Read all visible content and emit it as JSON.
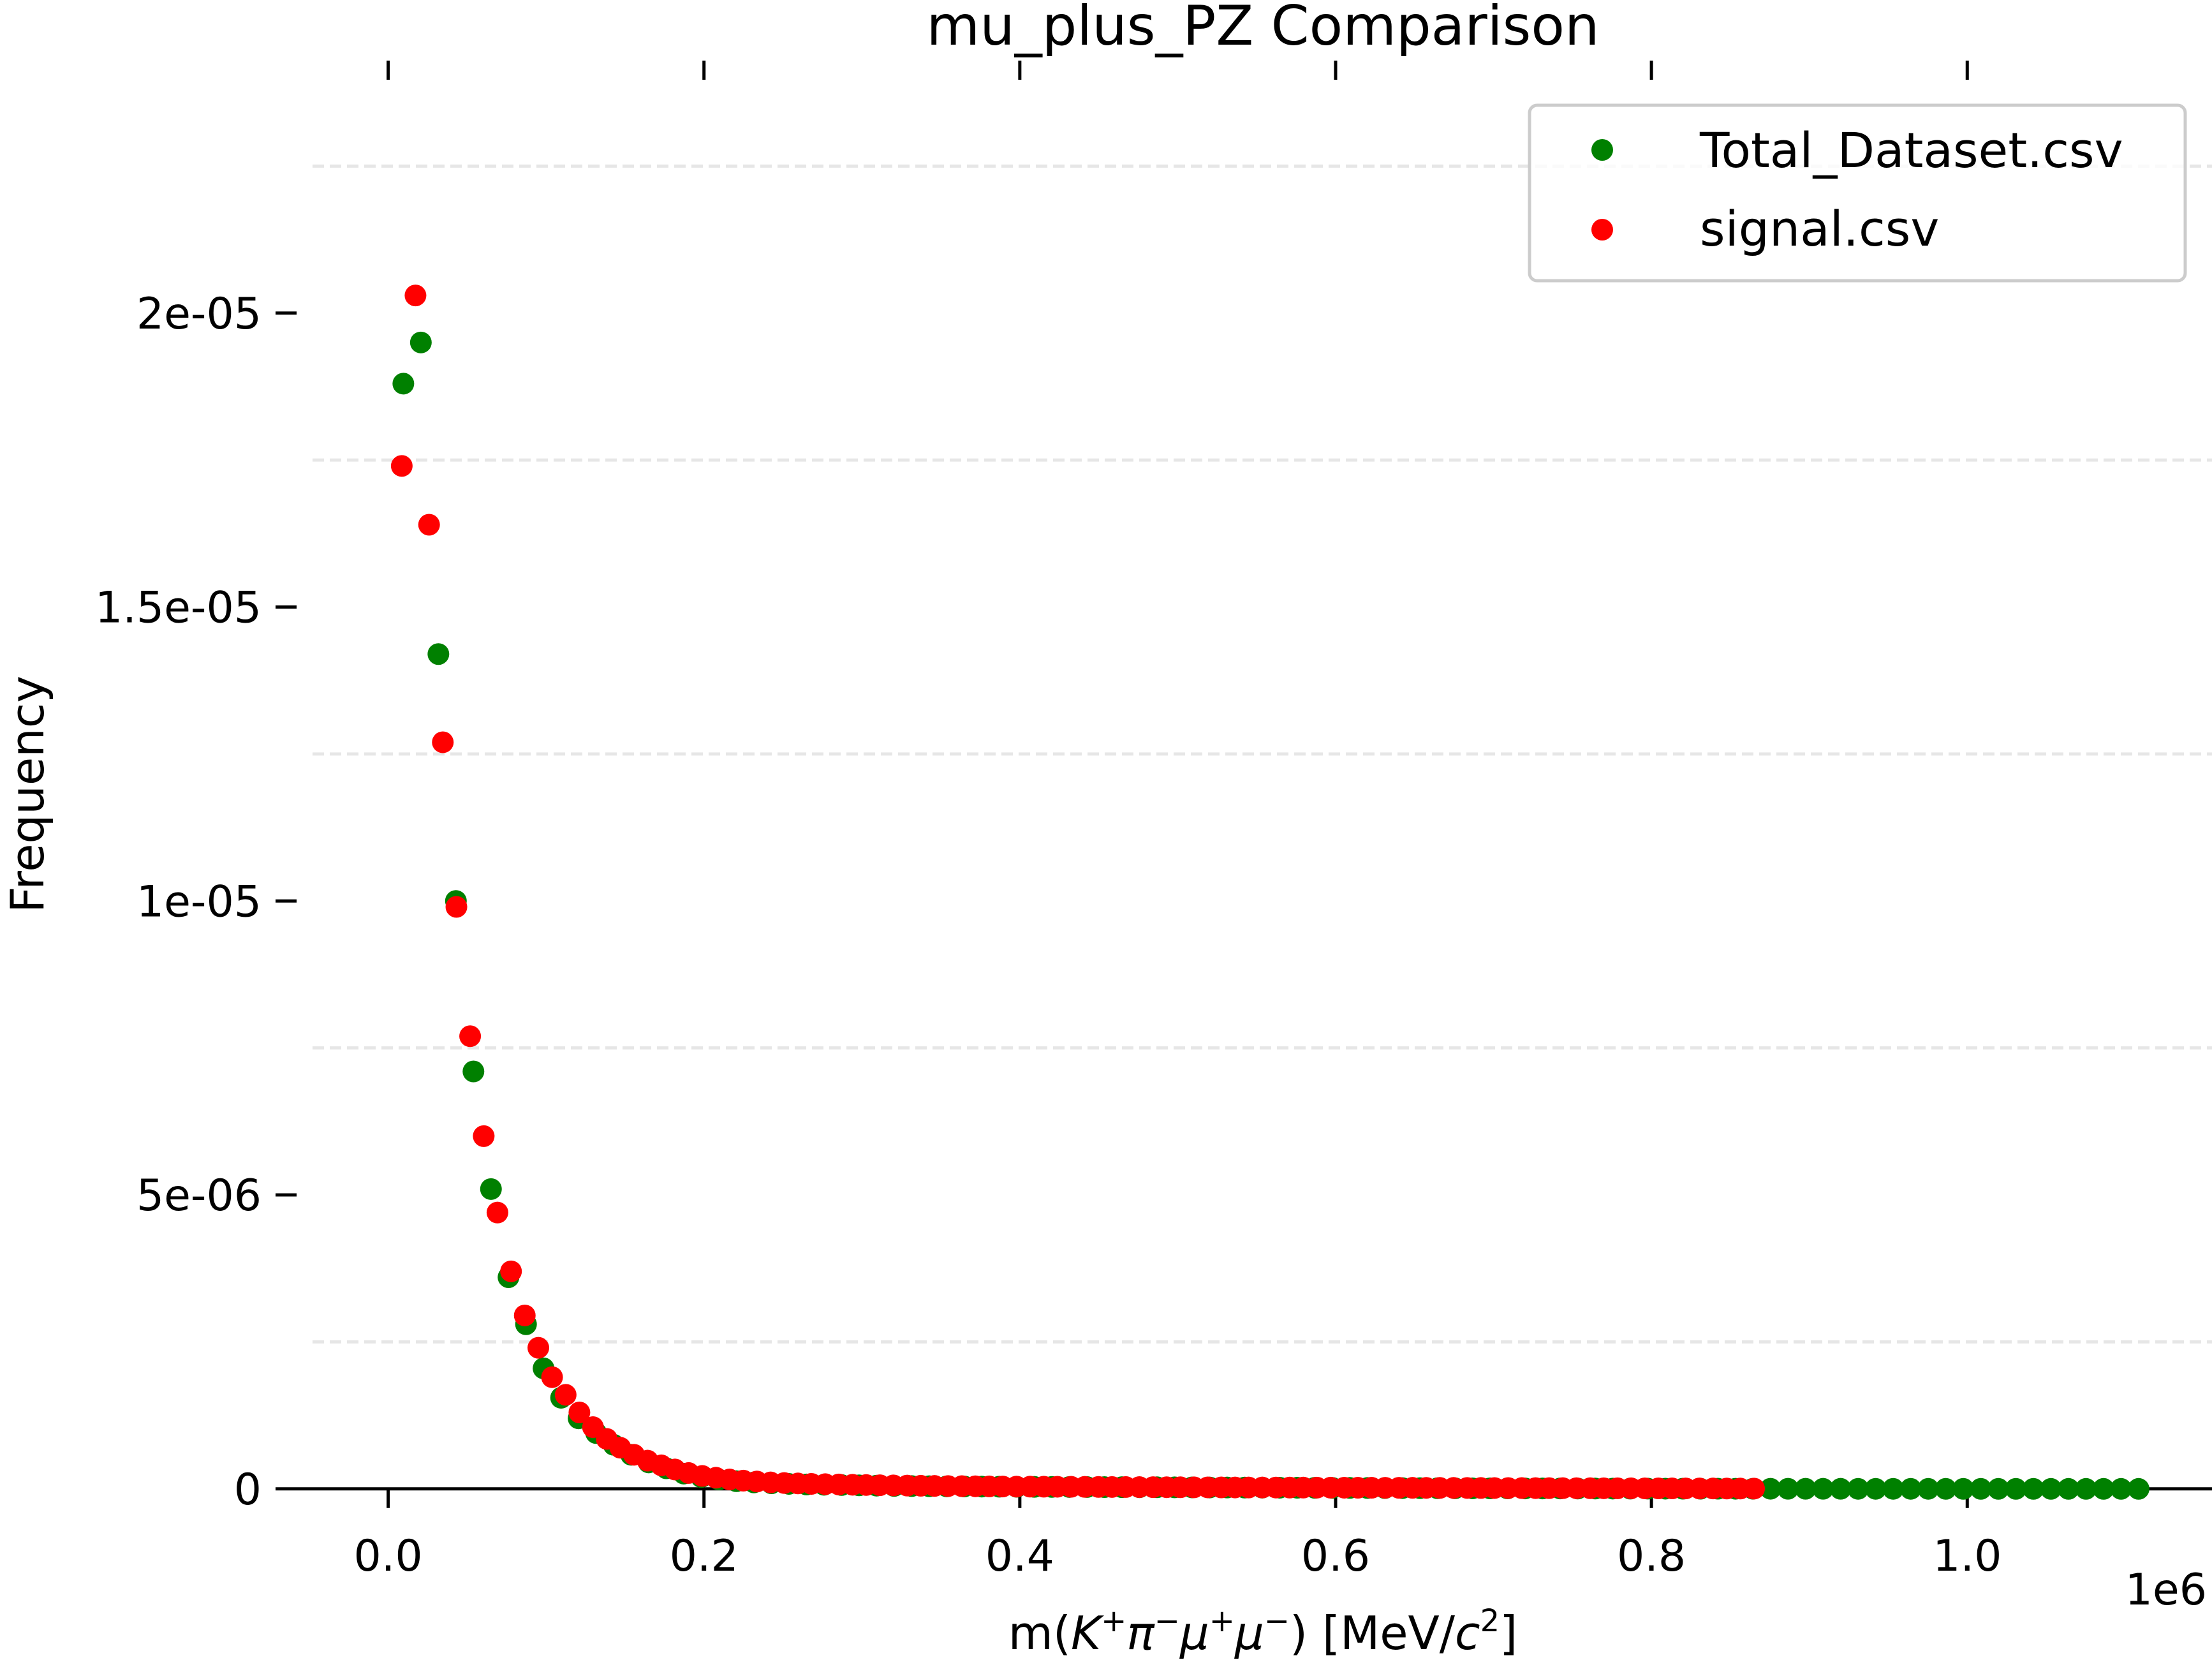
{
  "chart_data": {
    "type": "scatter",
    "title": "mu_plus_PZ Comparison",
    "xlabel": "m(K⁺π⁻μ⁺μ⁻) [MeV/c²]",
    "ylabel": "Frequency",
    "x_offset_label": "1e6",
    "xlim": [
      -0.058,
      1.155
    ],
    "ylim": [
      -1e-07,
      2.5e-05
    ],
    "x_ticks": [
      0.0,
      0.2,
      0.4,
      0.6,
      0.8,
      1.0
    ],
    "x_tick_labels": [
      "0.0",
      "0.2",
      "0.4",
      "0.6",
      "0.8",
      "1.0"
    ],
    "y_ticks": [
      0,
      5e-06,
      1e-05,
      1.5e-05,
      2e-05
    ],
    "y_tick_labels": [
      "0",
      "5e-06",
      "1e-05",
      "1.5e-05",
      "2e-05"
    ],
    "y_grid_dashed": [
      2.5e-06,
      7.5e-06,
      1.25e-05,
      1.75e-05,
      2.25e-05
    ],
    "legend_position": "top-right",
    "colors": {
      "axis": "#000000",
      "grid": "#e6e6e6",
      "legend_border": "#cccccc"
    },
    "series": [
      {
        "name": "Total_Dataset.csv",
        "color": "#008000",
        "x": [
          0.0096,
          0.0207,
          0.0318,
          0.0429,
          0.054,
          0.0651,
          0.0762,
          0.0873,
          0.0984,
          0.1095,
          0.1206,
          0.1317,
          0.1428,
          0.1539,
          0.165,
          0.1761,
          0.1872,
          0.1983,
          0.2094,
          0.2205,
          0.2316,
          0.2427,
          0.2538,
          0.2649,
          0.276,
          0.2871,
          0.2982,
          0.3093,
          0.3204,
          0.3315,
          0.3426,
          0.3537,
          0.3648,
          0.3759,
          0.387,
          0.3981,
          0.4092,
          0.4203,
          0.4314,
          0.4425,
          0.4536,
          0.4647,
          0.4758,
          0.4869,
          0.498,
          0.5091,
          0.5202,
          0.5313,
          0.5424,
          0.5535,
          0.5646,
          0.5757,
          0.5868,
          0.5979,
          0.609,
          0.6201,
          0.6312,
          0.6423,
          0.6534,
          0.6645,
          0.6756,
          0.6867,
          0.6978,
          0.7089,
          0.72,
          0.7311,
          0.7422,
          0.7533,
          0.7644,
          0.7755,
          0.7866,
          0.7977,
          0.8088,
          0.8199,
          0.831,
          0.8421,
          0.8532,
          0.8643,
          0.8754,
          0.8865,
          0.8976,
          0.9087,
          0.9198,
          0.9309,
          0.942,
          0.9531,
          0.9642,
          0.9753,
          0.9864,
          0.9975,
          1.0086,
          1.0197,
          1.0308,
          1.0419,
          1.053,
          1.0641,
          1.0752,
          1.0863,
          1.0974,
          1.1085
        ],
        "y": [
          1.88e-05,
          1.95e-05,
          1.42e-05,
          1e-05,
          7.1e-06,
          5.1e-06,
          3.6e-06,
          2.8e-06,
          2.05e-06,
          1.55e-06,
          1.2e-06,
          9.5e-07,
          7.5e-07,
          5.8e-07,
          4.5e-07,
          3.5e-07,
          2.6e-07,
          2e-07,
          1.6e-07,
          1.3e-07,
          1.1e-07,
          9.5e-08,
          8.5e-08,
          7.5e-08,
          7e-08,
          6.5e-08,
          6e-08,
          5.5e-08,
          5e-08,
          4.8e-08,
          4.5e-08,
          4.3e-08,
          4.1e-08,
          3.9e-08,
          3.7e-08,
          3.5e-08,
          3.4e-08,
          3.3e-08,
          3.2e-08,
          3.1e-08,
          3e-08,
          2.9e-08,
          2.8e-08,
          2.7e-08,
          2.6e-08,
          2.5e-08,
          2.4e-08,
          2.3e-08,
          2.2e-08,
          2.1e-08,
          2e-08,
          1.9e-08,
          1.8e-08,
          1.7e-08,
          1.6e-08,
          1.5e-08,
          1.4e-08,
          1.3e-08,
          1.2e-08,
          1.1e-08,
          1e-08,
          9e-09,
          8.5e-09,
          8e-09,
          7.5e-09,
          7e-09,
          6.5e-09,
          6e-09,
          5.5e-09,
          5e-09,
          4.5e-09,
          4e-09,
          3.5e-09,
          3e-09,
          2.8e-09,
          2.6e-09,
          2.4e-09,
          2.2e-09,
          2e-09,
          1.8e-09,
          1.6e-09,
          1.4e-09,
          1.2e-09,
          1e-09,
          9e-10,
          8e-10,
          7e-10,
          6e-10,
          5e-10,
          4e-10,
          3.5e-10,
          3e-10,
          2.5e-10,
          2e-10,
          1.5e-10,
          1e-10,
          8e-11,
          6e-11,
          4e-11,
          2e-11
        ]
      },
      {
        "name": "signal.csv",
        "color": "#ff0000",
        "x": [
          0.0086,
          0.0173,
          0.0259,
          0.0346,
          0.0432,
          0.0519,
          0.0605,
          0.0692,
          0.0778,
          0.0865,
          0.0951,
          0.1038,
          0.1124,
          0.1211,
          0.1297,
          0.1384,
          0.147,
          0.1557,
          0.1643,
          0.173,
          0.1816,
          0.1903,
          0.1989,
          0.2076,
          0.2162,
          0.2249,
          0.2335,
          0.2422,
          0.2508,
          0.2595,
          0.2681,
          0.2768,
          0.2854,
          0.2941,
          0.3027,
          0.3114,
          0.32,
          0.3287,
          0.3373,
          0.346,
          0.3546,
          0.3633,
          0.3719,
          0.3806,
          0.3892,
          0.3979,
          0.4065,
          0.4152,
          0.4238,
          0.4325,
          0.4411,
          0.4498,
          0.4584,
          0.4671,
          0.4757,
          0.4844,
          0.493,
          0.5017,
          0.5103,
          0.519,
          0.5276,
          0.5363,
          0.5449,
          0.5536,
          0.5622,
          0.5709,
          0.5795,
          0.5882,
          0.5968,
          0.6055,
          0.6141,
          0.6228,
          0.6314,
          0.6401,
          0.6487,
          0.6574,
          0.666,
          0.6747,
          0.6833,
          0.692,
          0.7006,
          0.7093,
          0.7179,
          0.7266,
          0.7352,
          0.7439,
          0.7525,
          0.7612,
          0.7698,
          0.7785,
          0.7871,
          0.7958,
          0.8044,
          0.8131,
          0.8217,
          0.8304,
          0.839,
          0.8477,
          0.8563,
          0.865
        ],
        "y": [
          1.74e-05,
          2.03e-05,
          1.64e-05,
          1.27e-05,
          9.9e-06,
          7.7e-06,
          6e-06,
          4.7e-06,
          3.7e-06,
          2.95e-06,
          2.4e-06,
          1.9e-06,
          1.6e-06,
          1.3e-06,
          1.05e-06,
          8.5e-07,
          7e-07,
          5.8e-07,
          4.8e-07,
          4e-07,
          3.3e-07,
          2.7e-07,
          2.2e-07,
          1.9e-07,
          1.6e-07,
          1.4e-07,
          1.25e-07,
          1.1e-07,
          1e-07,
          9.2e-08,
          8.5e-08,
          8e-08,
          7.5e-08,
          7e-08,
          6.6e-08,
          6.2e-08,
          5.9e-08,
          5.6e-08,
          5.3e-08,
          5e-08,
          4.8e-08,
          4.6e-08,
          4.4e-08,
          4.2e-08,
          4e-08,
          3.9e-08,
          3.8e-08,
          3.7e-08,
          3.6e-08,
          3.5e-08,
          3.4e-08,
          3.3e-08,
          3.2e-08,
          3.1e-08,
          3e-08,
          2.9e-08,
          2.8e-08,
          2.7e-08,
          2.6e-08,
          2.5e-08,
          2.45e-08,
          2.4e-08,
          2.35e-08,
          2.3e-08,
          2.25e-08,
          2.2e-08,
          2.15e-08,
          2.1e-08,
          2.05e-08,
          2e-08,
          1.95e-08,
          1.9e-08,
          1.85e-08,
          1.8e-08,
          1.75e-08,
          1.7e-08,
          1.65e-08,
          1.6e-08,
          1.55e-08,
          1.5e-08,
          1.45e-08,
          1.4e-08,
          1.35e-08,
          1.3e-08,
          1.25e-08,
          1.2e-08,
          1.15e-08,
          1.1e-08,
          1.05e-08,
          1e-08,
          9.5e-09,
          9e-09,
          8.5e-09,
          8e-09,
          7.5e-09,
          7e-09,
          6.5e-09,
          6e-09,
          5.5e-09,
          5e-09
        ]
      }
    ]
  }
}
